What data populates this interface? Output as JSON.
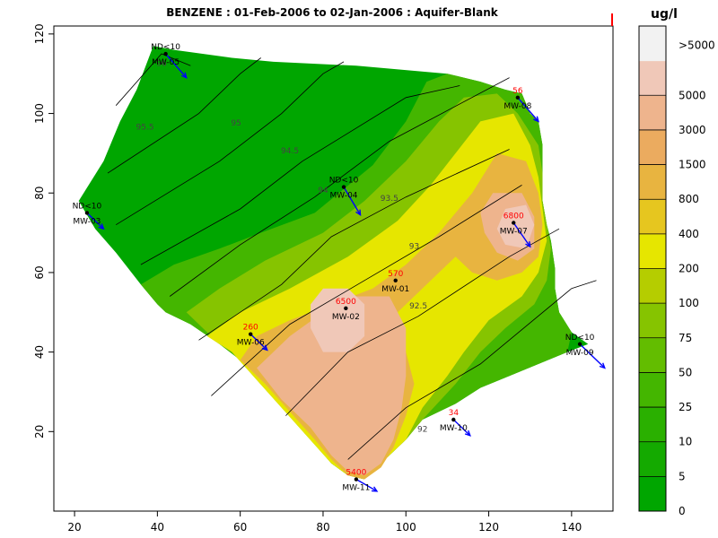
{
  "chart_data": {
    "type": "heatmap",
    "title": "BENZENE  : 01-Feb-2006 to 02-Jan-2006 : Aquifer-Blank",
    "xlabel": "",
    "ylabel": "",
    "xlim": [
      15,
      150
    ],
    "ylim": [
      0,
      122
    ],
    "x_ticks": [
      20,
      40,
      60,
      80,
      100,
      120,
      140
    ],
    "y_ticks": [
      20,
      40,
      60,
      80,
      100,
      120
    ],
    "unit_label": "ug/l",
    "legend": {
      "breaks": [
        "0",
        "5",
        "10",
        "25",
        "50",
        "75",
        "100",
        "200",
        "400",
        "800",
        "1500",
        "3000",
        "5000",
        ">5000"
      ],
      "colors": [
        "#00a600",
        "#14aa00",
        "#2ab000",
        "#44b600",
        "#63bd00",
        "#86c400",
        "#b5cd00",
        "#e6e600",
        "#e6c61f",
        "#e8b440",
        "#ebab5f",
        "#eeb48d",
        "#f0c8b8",
        "#f2f2f2"
      ]
    },
    "wells": [
      {
        "name": "MW-05",
        "x": 42,
        "y": 115,
        "conc": "ND<10",
        "dx": 5,
        "dy": -6,
        "conc_color": "black"
      },
      {
        "name": "MW-08",
        "x": 127,
        "y": 104,
        "conc": "56",
        "dx": 5,
        "dy": -6,
        "conc_color": "red"
      },
      {
        "name": "MW-04",
        "x": 85,
        "y": 81.5,
        "conc": "ND<10",
        "dx": 4,
        "dy": -7,
        "conc_color": "black"
      },
      {
        "name": "MW-03",
        "x": 23,
        "y": 75,
        "conc": "ND<10",
        "dx": 4,
        "dy": -4,
        "conc_color": "black"
      },
      {
        "name": "MW-07",
        "x": 126,
        "y": 72.5,
        "conc": "6800",
        "dx": 4,
        "dy": -6,
        "conc_color": "red"
      },
      {
        "name": "MW-01",
        "x": 97.5,
        "y": 58,
        "conc": "570",
        "dx": 0,
        "dy": 0,
        "conc_color": "red"
      },
      {
        "name": "MW-02",
        "x": 85.5,
        "y": 51,
        "conc": "6500",
        "dx": 0,
        "dy": 0,
        "conc_color": "red"
      },
      {
        "name": "MW-06",
        "x": 62.5,
        "y": 44.5,
        "conc": "260",
        "dx": 4,
        "dy": -4,
        "conc_color": "red"
      },
      {
        "name": "MW-09",
        "x": 142,
        "y": 42,
        "conc": "ND<10",
        "dx": 6,
        "dy": -6,
        "conc_color": "black"
      },
      {
        "name": "MW-10",
        "x": 111.5,
        "y": 23,
        "conc": "34",
        "dx": 4,
        "dy": -4,
        "conc_color": "red"
      },
      {
        "name": "MW-11",
        "x": 88,
        "y": 8,
        "conc": "5400",
        "dx": 5,
        "dy": -3,
        "conc_color": "red"
      }
    ],
    "contours": [
      {
        "level": "96",
        "points": [
          [
            30,
            102
          ],
          [
            41,
            115
          ],
          [
            48,
            112
          ]
        ],
        "label_at": [
          41,
          112
        ]
      },
      {
        "level": "95.5",
        "points": [
          [
            28,
            85
          ],
          [
            50,
            100
          ],
          [
            60,
            110
          ],
          [
            65,
            114
          ]
        ],
        "label_at": [
          37,
          96
        ]
      },
      {
        "level": "95",
        "points": [
          [
            30,
            72
          ],
          [
            55,
            88
          ],
          [
            70,
            100
          ],
          [
            80,
            110
          ],
          [
            85,
            113
          ]
        ],
        "label_at": [
          59,
          97
        ]
      },
      {
        "level": "94.5",
        "points": [
          [
            36,
            62
          ],
          [
            60,
            76
          ],
          [
            75,
            88
          ],
          [
            100,
            104
          ],
          [
            113,
            107
          ]
        ],
        "label_at": [
          72,
          90
        ]
      },
      {
        "level": "94",
        "points": [
          [
            43,
            54
          ],
          [
            60,
            67
          ],
          [
            78,
            79
          ],
          [
            96,
            93
          ],
          [
            125,
            109
          ]
        ],
        "label_at": [
          80,
          80
        ]
      },
      {
        "level": "93.5",
        "points": [
          [
            50,
            43
          ],
          [
            70,
            57
          ],
          [
            82,
            69
          ],
          [
            100,
            79
          ],
          [
            125,
            91
          ]
        ],
        "label_at": [
          96,
          78
        ]
      },
      {
        "level": "93",
        "points": [
          [
            53,
            29
          ],
          [
            72,
            47
          ],
          [
            90,
            58
          ],
          [
            108,
            69
          ],
          [
            128,
            82
          ]
        ],
        "label_at": [
          102,
          66
        ]
      },
      {
        "level": "92.5",
        "points": [
          [
            71,
            24
          ],
          [
            86,
            40
          ],
          [
            103,
            49
          ],
          [
            125,
            64
          ],
          [
            137,
            71
          ]
        ],
        "label_at": [
          103,
          51
        ]
      },
      {
        "level": "92",
        "points": [
          [
            86,
            13
          ],
          [
            100,
            26
          ],
          [
            118,
            37
          ],
          [
            140,
            56
          ],
          [
            146,
            58
          ]
        ],
        "label_at": [
          104,
          20
        ]
      }
    ]
  }
}
